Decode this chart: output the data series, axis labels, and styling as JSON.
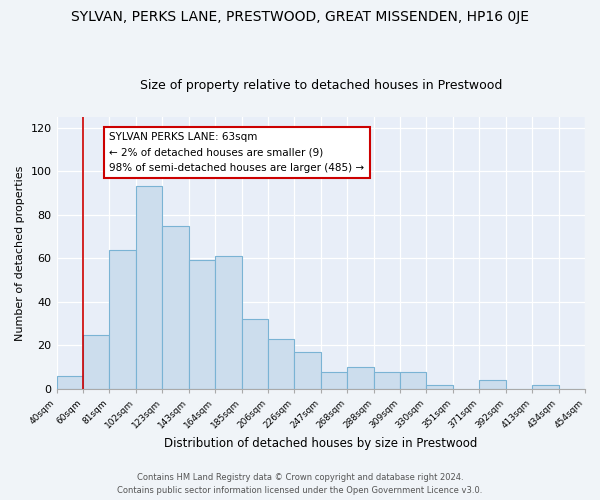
{
  "title": "SYLVAN, PERKS LANE, PRESTWOOD, GREAT MISSENDEN, HP16 0JE",
  "subtitle": "Size of property relative to detached houses in Prestwood",
  "xlabel": "Distribution of detached houses by size in Prestwood",
  "ylabel": "Number of detached properties",
  "bar_color": "#ccdded",
  "bar_edge_color": "#7ab3d4",
  "bins": [
    "40sqm",
    "60sqm",
    "81sqm",
    "102sqm",
    "123sqm",
    "143sqm",
    "164sqm",
    "185sqm",
    "206sqm",
    "226sqm",
    "247sqm",
    "268sqm",
    "288sqm",
    "309sqm",
    "330sqm",
    "351sqm",
    "371sqm",
    "392sqm",
    "413sqm",
    "434sqm",
    "454sqm"
  ],
  "values": [
    6,
    25,
    64,
    93,
    75,
    59,
    61,
    32,
    23,
    17,
    8,
    10,
    8,
    8,
    2,
    0,
    4,
    0,
    2,
    0
  ],
  "ylim": [
    0,
    125
  ],
  "yticks": [
    0,
    20,
    40,
    60,
    80,
    100,
    120
  ],
  "vline_x": 1,
  "vline_color": "#cc0000",
  "annotation_title": "SYLVAN PERKS LANE: 63sqm",
  "annotation_line1": "← 2% of detached houses are smaller (9)",
  "annotation_line2": "98% of semi-detached houses are larger (485) →",
  "footer_line1": "Contains HM Land Registry data © Crown copyright and database right 2024.",
  "footer_line2": "Contains public sector information licensed under the Open Government Licence v3.0.",
  "plot_bg_color": "#e8eef8",
  "fig_bg_color": "#f0f4f8",
  "grid_color": "#d0d8e8",
  "title_fontsize": 10,
  "subtitle_fontsize": 9
}
